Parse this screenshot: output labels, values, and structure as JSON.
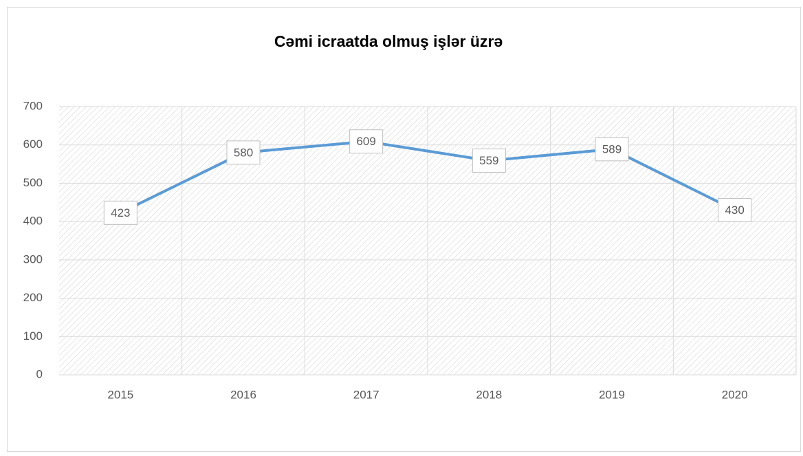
{
  "chart_data": {
    "type": "line",
    "title": "Cəmi icraatda olmuş işlər üzrə",
    "categories": [
      "2015",
      "2016",
      "2017",
      "2018",
      "2019",
      "2020"
    ],
    "values": [
      423,
      580,
      609,
      559,
      589,
      430
    ],
    "color": "#5b9bd5",
    "ylim": [
      0,
      700
    ],
    "yticks": [
      0,
      100,
      200,
      300,
      400,
      500,
      600,
      700
    ],
    "grid": true
  }
}
